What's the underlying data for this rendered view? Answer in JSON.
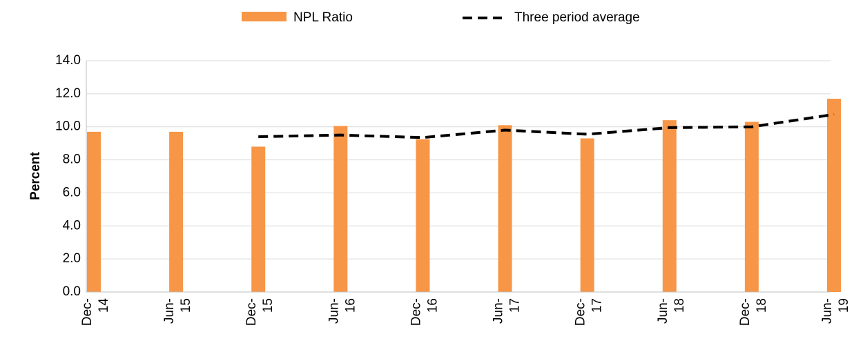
{
  "chart_data": {
    "type": "bar",
    "y_label": "Percent",
    "categories": [
      "Dec-14",
      "Jun-15",
      "Dec-15",
      "Jun-16",
      "Dec-16",
      "Jun-17",
      "Dec-17",
      "Jun-18",
      "Dec-18",
      "Jun-19"
    ],
    "series": [
      {
        "name": "NPL Ratio",
        "type": "bar",
        "color": "#f79646",
        "values": [
          9.7,
          9.7,
          8.8,
          10.05,
          9.25,
          10.1,
          9.3,
          10.4,
          10.3,
          11.7
        ]
      },
      {
        "name": "Three period average",
        "type": "line",
        "color": "#000000",
        "values": [
          null,
          null,
          9.4,
          9.5,
          9.35,
          9.8,
          9.55,
          9.95,
          10.0,
          10.75
        ]
      }
    ],
    "ylim": [
      0,
      14
    ],
    "yticks": [
      {
        "value": 0,
        "label": "0.0"
      },
      {
        "value": 2,
        "label": "2.0"
      },
      {
        "value": 4,
        "label": "4.0"
      },
      {
        "value": 6,
        "label": "6.0"
      },
      {
        "value": 8,
        "label": "8.0"
      },
      {
        "value": 10,
        "label": "10.0"
      },
      {
        "value": 12,
        "label": "12.0"
      },
      {
        "value": 14,
        "label": "14.0"
      }
    ],
    "grid": true,
    "legend": "top"
  }
}
